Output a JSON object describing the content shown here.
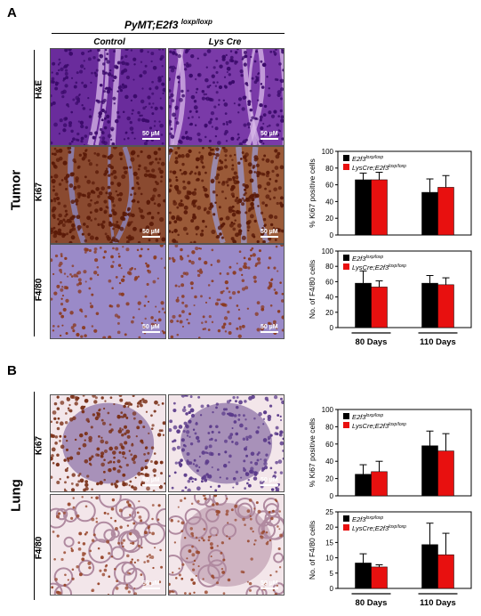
{
  "panels": {
    "A": {
      "letter": "A",
      "title_main": "PyMT;E2f3 ",
      "title_sup": "loxp/loxp",
      "col_labels": [
        "Control",
        "Lys Cre"
      ],
      "row_labels": [
        "H&E",
        "Ki67",
        "F4/80"
      ],
      "side_label": "Tumor",
      "scale_text": "50 µM"
    },
    "B": {
      "letter": "B",
      "row_labels": [
        "Ki67",
        "F4/80"
      ],
      "side_label": "Lung",
      "scale_text": "50 µM"
    }
  },
  "colors": {
    "control": "#000000",
    "lyscre": "#e8100f",
    "he_bg": "#6a2c9c",
    "he_stroma": "#d8b8e8",
    "ki_bg": "#8a4a30",
    "ki_nuc": "#5a1a08",
    "f480_bg": "#9a8ac8",
    "lung_bg": "#f3e6ea",
    "lung_tissue": "#b08aa0"
  },
  "chart_data": [
    {
      "type": "bar",
      "panel": "A",
      "ylabel": "% Ki67 positive cells",
      "ylim": [
        0,
        100
      ],
      "yticks": [
        "0",
        "20",
        "40",
        "60",
        "80",
        "100"
      ],
      "categories": [
        "80 Days",
        "110 Days"
      ],
      "legend": [
        {
          "base": "E2f3",
          "sup": "loxp/loxp"
        },
        {
          "base": "LysCre;E2f3",
          "sup": "loxp/loxp"
        }
      ],
      "show_xlabels": false,
      "series": [
        {
          "values": [
            66,
            51
          ],
          "errors": [
            8,
            16
          ]
        },
        {
          "values": [
            66,
            57
          ],
          "errors": [
            9,
            14
          ]
        }
      ]
    },
    {
      "type": "bar",
      "panel": "A",
      "ylabel": "No. of F4/80 cells",
      "ylim": [
        0,
        100
      ],
      "yticks": [
        "0",
        "20",
        "40",
        "60",
        "80",
        "100"
      ],
      "categories": [
        "80 Days",
        "110 Days"
      ],
      "legend": [
        {
          "base": "E2f3",
          "sup": "loxp/loxp"
        },
        {
          "base": "LysCre;E2f3",
          "sup": "loxp/loxp"
        }
      ],
      "show_xlabels": true,
      "series": [
        {
          "values": [
            58,
            58
          ],
          "errors": [
            16,
            10
          ]
        },
        {
          "values": [
            53,
            56
          ],
          "errors": [
            8,
            9
          ]
        }
      ]
    },
    {
      "type": "bar",
      "panel": "B",
      "ylabel": "% Ki67 positive cells",
      "ylim": [
        0,
        100
      ],
      "yticks": [
        "0",
        "20",
        "40",
        "60",
        "80",
        "100"
      ],
      "categories": [
        "80 Days",
        "110 Days"
      ],
      "legend": [
        {
          "base": "E2f3",
          "sup": "loxp/loxp"
        },
        {
          "base": "LysCre;E2f3",
          "sup": "loxp/loxp"
        }
      ],
      "show_xlabels": false,
      "series": [
        {
          "values": [
            25,
            58
          ],
          "errors": [
            11,
            17
          ]
        },
        {
          "values": [
            28,
            52
          ],
          "errors": [
            12,
            20
          ]
        }
      ]
    },
    {
      "type": "bar",
      "panel": "B",
      "ylabel": "No. of F4/80 cells",
      "ylim": [
        0,
        25
      ],
      "yticks": [
        "0",
        "5",
        "10",
        "15",
        "20",
        "25"
      ],
      "categories": [
        "80 Days",
        "110 Days"
      ],
      "legend": [
        {
          "base": "E2f3",
          "sup": "loxp/loxp"
        },
        {
          "base": "LysCre;E2f3",
          "sup": "loxp/loxp"
        }
      ],
      "show_xlabels": true,
      "series": [
        {
          "values": [
            8.3,
            14.3
          ],
          "errors": [
            3,
            7
          ]
        },
        {
          "values": [
            7.0,
            11.0
          ],
          "errors": [
            0.7,
            7
          ]
        }
      ]
    }
  ]
}
